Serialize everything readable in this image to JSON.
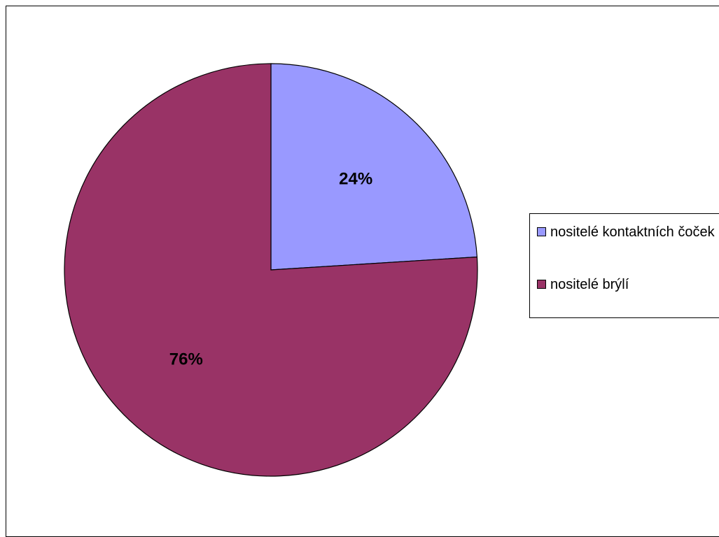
{
  "chart_data": {
    "type": "pie",
    "title": "",
    "slices": [
      {
        "name": "nositelé kontaktních čoček",
        "value": 24,
        "label": "24%",
        "color": "#9999FF"
      },
      {
        "name": "nositelé brýlí",
        "value": 76,
        "label": "76%",
        "color": "#993366"
      }
    ],
    "start_angle": "12 o'clock",
    "direction": "clockwise",
    "legend_position": "right"
  }
}
